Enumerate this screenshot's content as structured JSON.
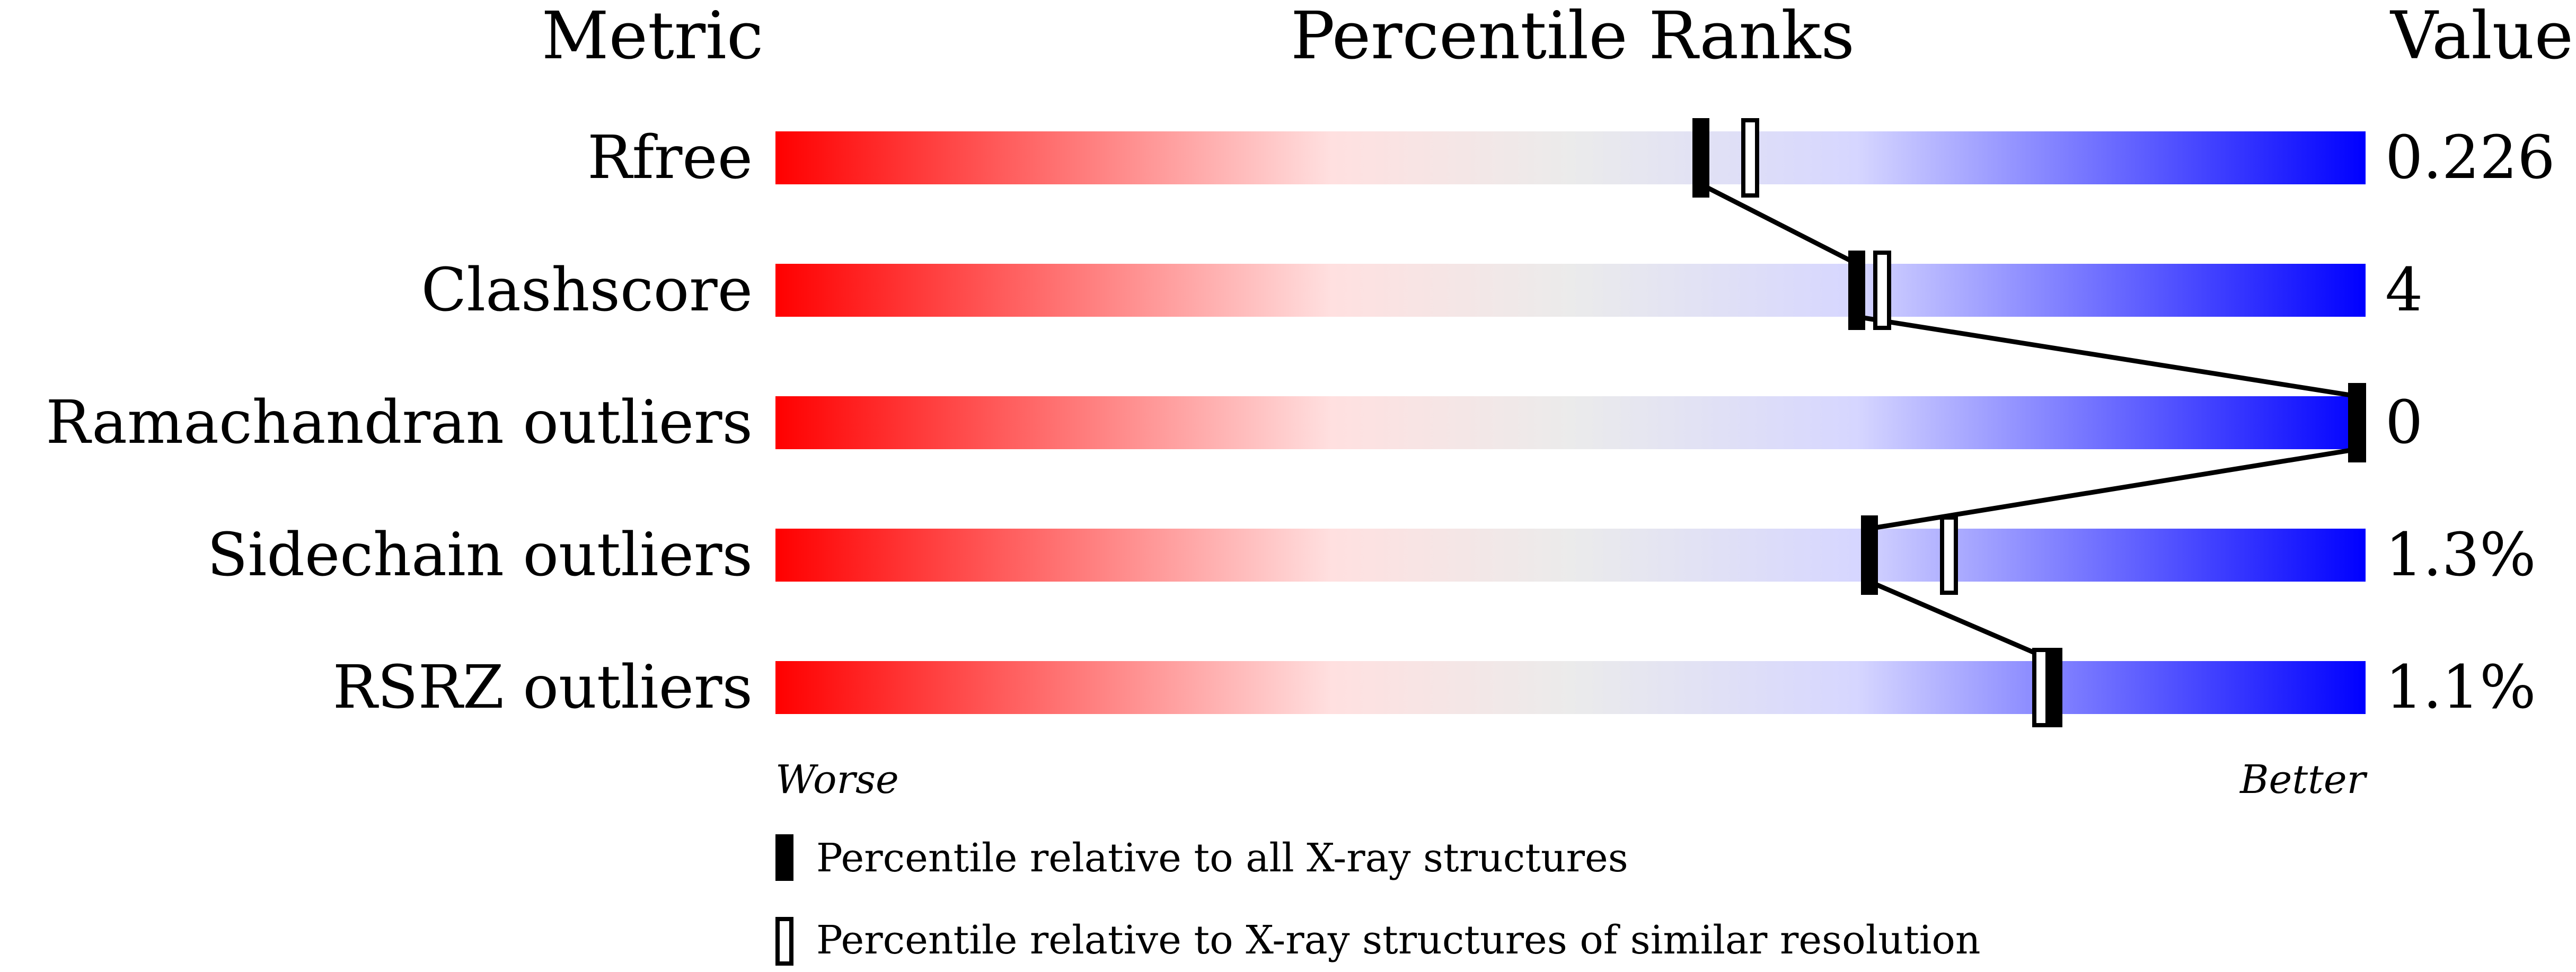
{
  "chart_data": {
    "type": "bar",
    "headers": {
      "metric": "Metric",
      "ranks": "Percentile Ranks",
      "value": "Value"
    },
    "axis": {
      "left": "Worse",
      "right": "Better",
      "range": [
        0,
        100
      ]
    },
    "gradient_colors": [
      "#ff0000",
      "#ffe0e0",
      "#ebebeb",
      "#d6d6ff",
      "#0000ff"
    ],
    "metrics": [
      {
        "name": "Rfree",
        "value": "0.226",
        "percentile_all": 58.2,
        "percentile_similar": 61.3
      },
      {
        "name": "Clashscore",
        "value": "4",
        "percentile_all": 68.0,
        "percentile_similar": 69.6
      },
      {
        "name": "Ramachandran outliers",
        "value": "0",
        "percentile_all": 100,
        "percentile_similar": 100
      },
      {
        "name": "Sidechain outliers",
        "value": "1.3%",
        "percentile_all": 68.8,
        "percentile_similar": 73.8
      },
      {
        "name": "RSRZ outliers",
        "value": "1.1%",
        "percentile_all": 80.4,
        "percentile_similar": 79.6
      }
    ],
    "legend": [
      {
        "marker": "filled",
        "label": "Percentile relative to all X-ray structures"
      },
      {
        "marker": "open",
        "label": "Percentile relative to X-ray structures of similar resolution"
      }
    ]
  }
}
